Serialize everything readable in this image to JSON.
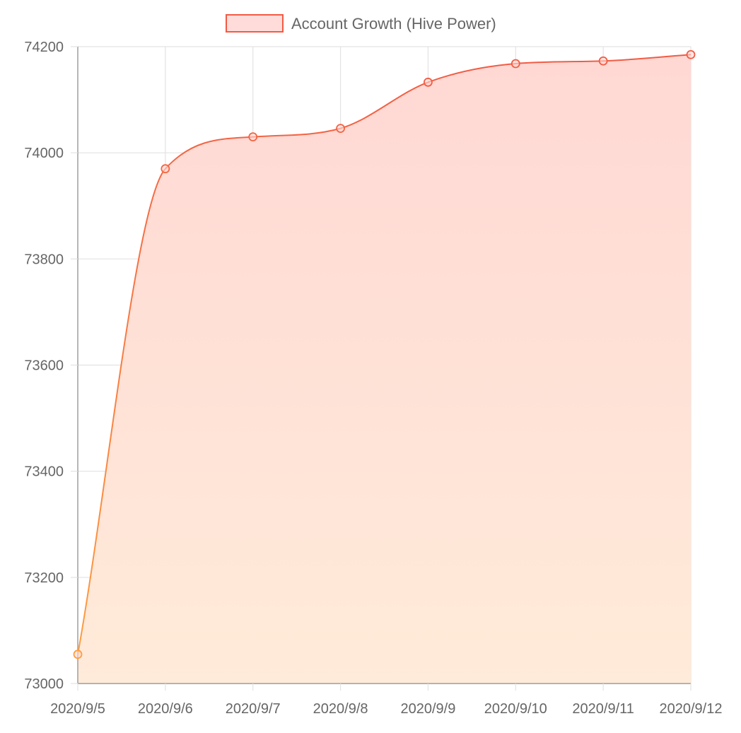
{
  "chart_data": {
    "type": "area",
    "categories": [
      "2020/9/5",
      "2020/9/6",
      "2020/9/7",
      "2020/9/8",
      "2020/9/9",
      "2020/9/10",
      "2020/9/11",
      "2020/9/12"
    ],
    "series": [
      {
        "name": "Account Growth (Hive Power)",
        "values": [
          73055,
          73970,
          74030,
          74046,
          74133,
          74168,
          74173,
          74185
        ]
      }
    ],
    "y_ticks": [
      "74200",
      "74000",
      "73800",
      "73600",
      "73400",
      "73200",
      "73000"
    ],
    "ylim": [
      73000,
      74200
    ],
    "grid": true,
    "legend_position": "top-center",
    "colors": {
      "line_top": "#f25a44",
      "line_bottom": "#ffa040",
      "fill_top": "#ffd8d4",
      "fill_bottom": "#ffebd9",
      "legend_border": "#f25a44",
      "legend_fill": "#ffdcda",
      "grid": "#e3e3e3",
      "axis": "#9e9e9e",
      "text": "#666666"
    }
  }
}
